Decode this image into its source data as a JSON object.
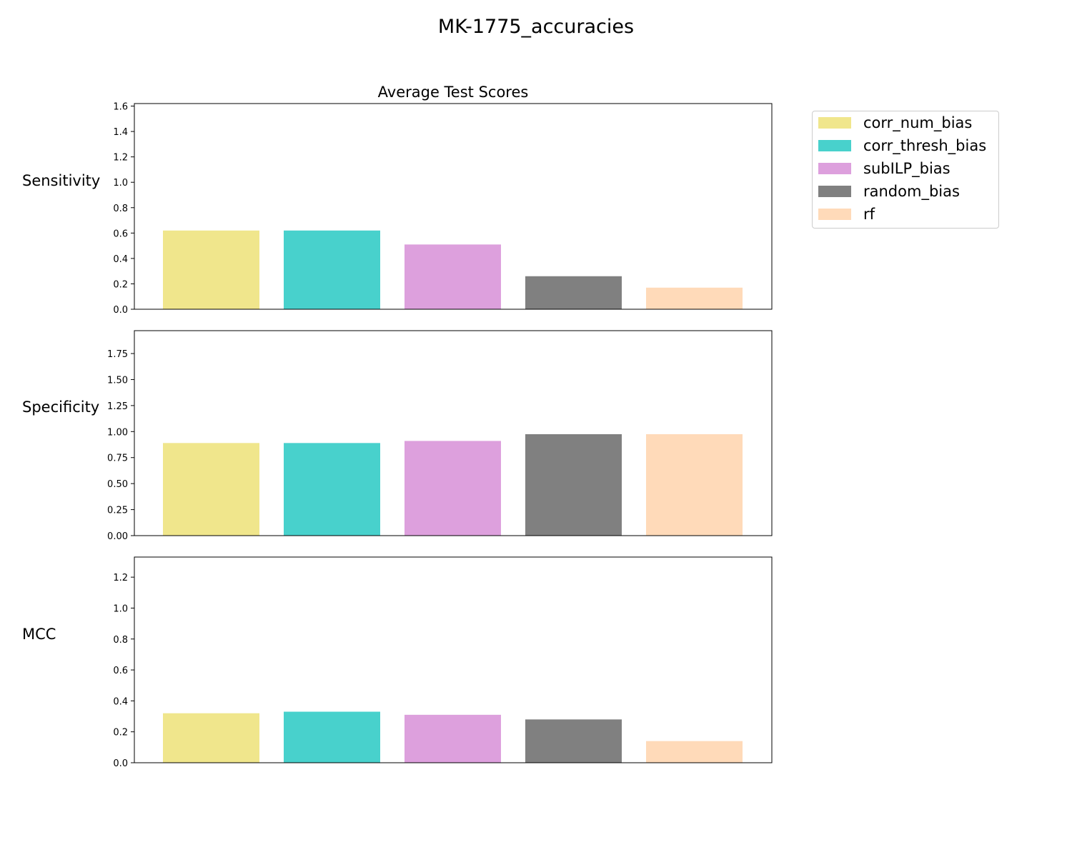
{
  "figure": {
    "suptitle": "MK-1775_accuracies"
  },
  "chart_data": {
    "type": "bar",
    "title": "Average Test Scores",
    "categories": [
      "corr_num_bias",
      "corr_thresh_bias",
      "subILP_bias",
      "random_bias",
      "rf"
    ],
    "colors": [
      "#f0e68c",
      "#48d1cc",
      "#dda0dd",
      "#808080",
      "#ffdab9"
    ],
    "legend_position": "right, outside plot",
    "grid": false,
    "panels": [
      {
        "ylabel": "Sensitivity",
        "values": [
          0.62,
          0.62,
          0.51,
          0.26,
          0.17
        ],
        "ylim": [
          0,
          1.62
        ],
        "yticks": [
          "0.0",
          "0.2",
          "0.4",
          "0.6",
          "0.8",
          "1.0",
          "1.2",
          "1.4",
          "1.6"
        ]
      },
      {
        "ylabel": "Specificity",
        "values": [
          0.89,
          0.89,
          0.91,
          0.975,
          0.975
        ],
        "ylim": [
          0,
          1.97
        ],
        "yticks": [
          "0.00",
          "0.25",
          "0.50",
          "0.75",
          "1.00",
          "1.25",
          "1.50",
          "1.75"
        ]
      },
      {
        "ylabel": "MCC",
        "values": [
          0.32,
          0.33,
          0.31,
          0.28,
          0.14
        ],
        "ylim": [
          0,
          1.33
        ],
        "yticks": [
          "0.0",
          "0.2",
          "0.4",
          "0.6",
          "0.8",
          "1.0",
          "1.2"
        ]
      }
    ]
  }
}
